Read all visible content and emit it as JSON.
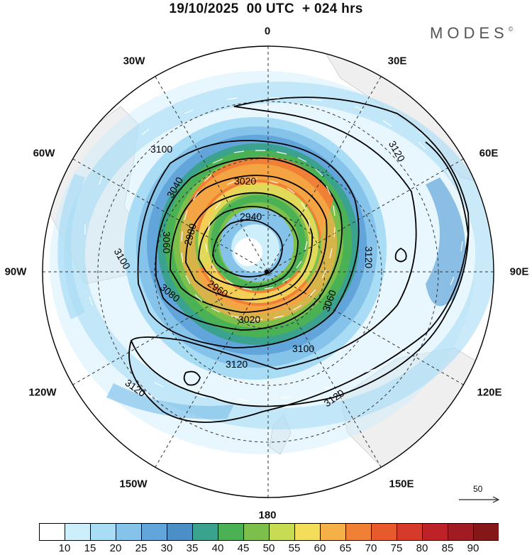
{
  "title": "19/10/2025  00 UTC  + 024 hrs",
  "logo": "MODES",
  "logo_mark": "©",
  "lon_labels": [
    "0",
    "30E",
    "60E",
    "90E",
    "120E",
    "150E",
    "180",
    "150W",
    "120W",
    "90W",
    "60W",
    "30W"
  ],
  "contour_labels": [
    "3120",
    "3120",
    "3120",
    "3120",
    "3100",
    "3100",
    "3100",
    "3060",
    "3060",
    "3040",
    "3020",
    "3020",
    "2980",
    "2960",
    "2940",
    "3080"
  ],
  "vector_key": {
    "value": "50"
  },
  "colorbar": {
    "ticks": [
      "10",
      "15",
      "20",
      "25",
      "30",
      "35",
      "40",
      "45",
      "50",
      "55",
      "60",
      "65",
      "70",
      "75",
      "80",
      "85",
      "90"
    ],
    "colors": [
      "#ffffff",
      "#cdeefb",
      "#a9dcf5",
      "#85c3ea",
      "#62a5da",
      "#4c8fc6",
      "#3aa28e",
      "#4bb155",
      "#7cc04b",
      "#c7dc52",
      "#f3dd5b",
      "#f6b048",
      "#f08036",
      "#e65a2c",
      "#d53a2b",
      "#bd2229",
      "#a11b23",
      "#851719"
    ]
  }
}
